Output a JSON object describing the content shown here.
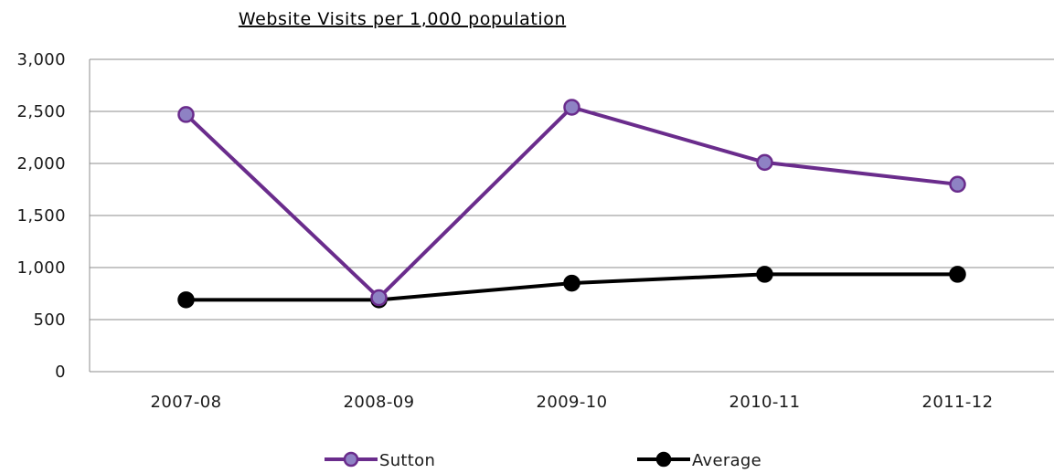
{
  "chart_data": {
    "type": "line",
    "title": "Website Visits per 1,000 population",
    "categories": [
      "2007-08",
      "2008-09",
      "2009-10",
      "2010-11",
      "2011-12"
    ],
    "series": [
      {
        "name": "Sutton",
        "values": [
          2470,
          710,
          2540,
          2010,
          1800
        ],
        "color": "#6a2c8c",
        "marker_fill": "#8e82c4"
      },
      {
        "name": "Average",
        "values": [
          690,
          690,
          850,
          935,
          935
        ],
        "color": "#000000",
        "marker_fill": "#000000"
      }
    ],
    "yticks": [
      "0",
      "500",
      "1,000",
      "1,500",
      "2,000",
      "2,500",
      "3,000"
    ],
    "ylim": [
      0,
      3000
    ],
    "grid": true,
    "legend_position": "bottom"
  }
}
